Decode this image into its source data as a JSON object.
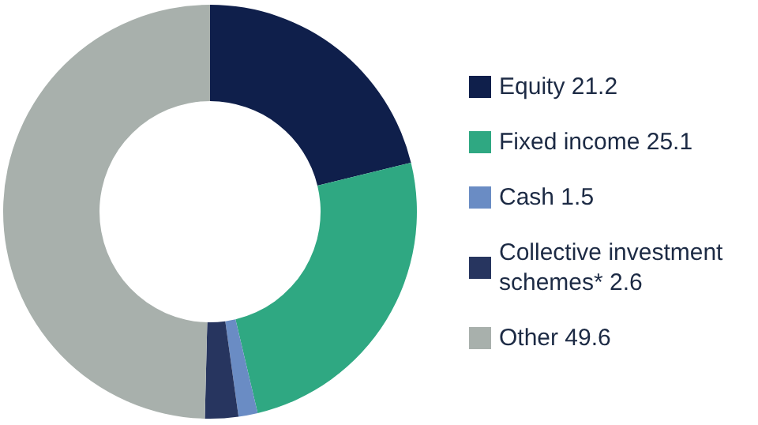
{
  "chart_data": {
    "type": "donut",
    "categories": [
      "Equity 21.2",
      "Fixed income 25.1",
      "Cash 1.5",
      "Collective investment schemes* 2.6",
      "Other 49.6"
    ],
    "values": [
      21.2,
      25.1,
      1.5,
      2.6,
      49.6
    ],
    "colors": [
      "#0f1f4b",
      "#2fa882",
      "#6a8cc4",
      "#27355f",
      "#a8b0ac"
    ],
    "legend": "right"
  }
}
